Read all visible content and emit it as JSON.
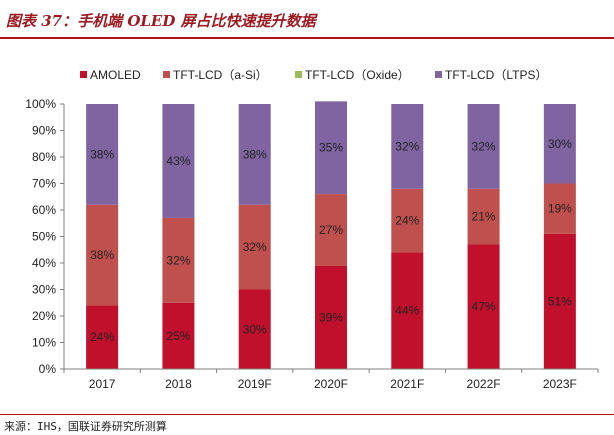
{
  "header": {
    "title": "图表 37：手机端 OLED 屏占比快速提升数据"
  },
  "footer": {
    "source": "来源：IHS，国联证券研究所测算"
  },
  "colors": {
    "amoled": "#c0102c",
    "tft_asi": "#c0504d",
    "tft_oxide": "#9bbb59",
    "tft_ltps": "#8064a2",
    "axis": "#7f7f7f",
    "title": "#9c1a22",
    "rule": "#b0121b"
  },
  "chart_data": {
    "type": "bar",
    "stacked": true,
    "categories": [
      "2017",
      "2018",
      "2019F",
      "2020F",
      "2021F",
      "2022F",
      "2023F"
    ],
    "series": [
      {
        "name": "AMOLED",
        "values": [
          24,
          25,
          30,
          39,
          44,
          47,
          51
        ],
        "labels": [
          "24%",
          "25%",
          "30%",
          "39%",
          "44%",
          "47%",
          "51%"
        ],
        "color": "#c0102c"
      },
      {
        "name": "TFT-LCD（a-Si）",
        "values": [
          38,
          32,
          32,
          27,
          24,
          21,
          19
        ],
        "labels": [
          "38%",
          "32%",
          "32%",
          "27%",
          "24%",
          "21%",
          "19%"
        ],
        "color": "#c0504d"
      },
      {
        "name": "TFT-LCD（Oxide）",
        "values": [
          0,
          0,
          0,
          0,
          0,
          0,
          0
        ],
        "labels": [
          "",
          "",
          "",
          "",
          "",
          "",
          ""
        ],
        "color": "#9bbb59"
      },
      {
        "name": "TFT-LCD（LTPS）",
        "values": [
          38,
          43,
          38,
          35,
          32,
          32,
          30
        ],
        "labels": [
          "38%",
          "43%",
          "38%",
          "35%",
          "32%",
          "32%",
          "30%"
        ],
        "color": "#8064a2"
      }
    ],
    "ylim": [
      0,
      100
    ],
    "yticks": [
      "0%",
      "10%",
      "20%",
      "30%",
      "40%",
      "50%",
      "60%",
      "70%",
      "80%",
      "90%",
      "100%"
    ],
    "grid": false,
    "legend": "top"
  }
}
